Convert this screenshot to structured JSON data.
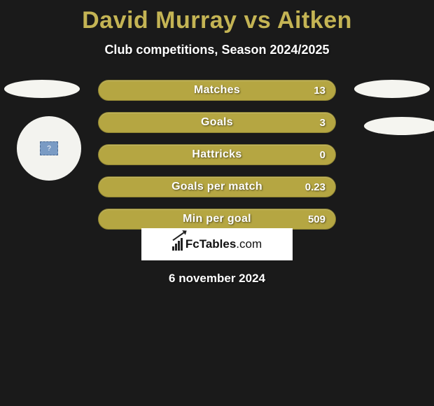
{
  "title": "David Murray vs Aitken",
  "subtitle": "Club competitions, Season 2024/2025",
  "date": "6 november 2024",
  "logo": "FcTables.com",
  "colors": {
    "background": "#1a1a1a",
    "accent": "#c4b454",
    "bar_fill": "#b5a642",
    "bar_border": "#8f8433",
    "text_light": "#ffffff",
    "shape_fill": "#f5f5f0"
  },
  "stats": [
    {
      "label": "Matches",
      "value": "13"
    },
    {
      "label": "Goals",
      "value": "3"
    },
    {
      "label": "Hattricks",
      "value": "0"
    },
    {
      "label": "Goals per match",
      "value": "0.23"
    },
    {
      "label": "Min per goal",
      "value": "509"
    }
  ],
  "avatar": {
    "placeholder_glyph": "?"
  }
}
